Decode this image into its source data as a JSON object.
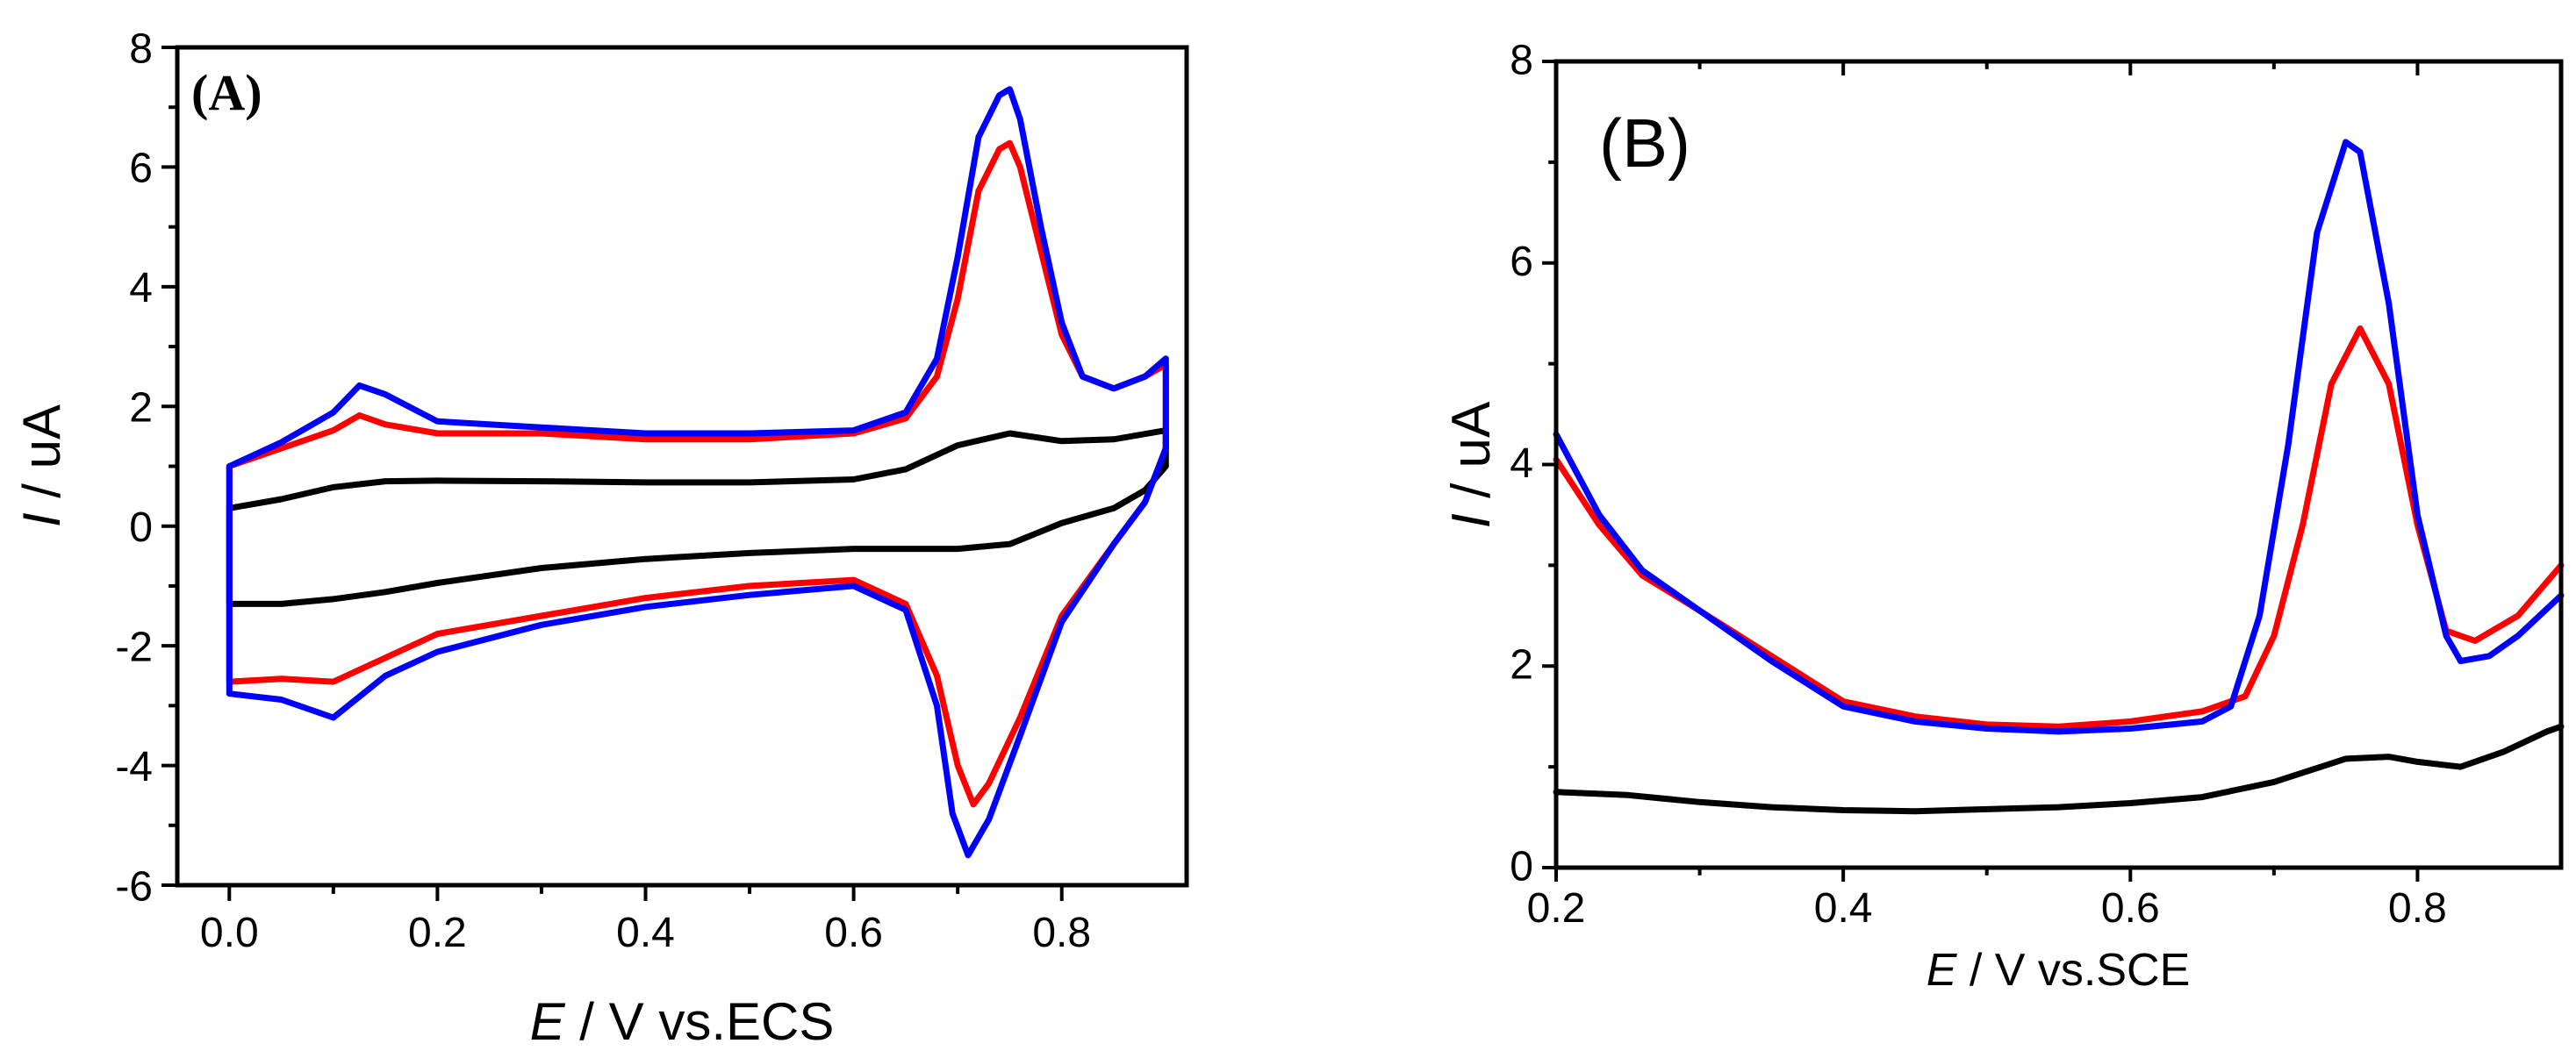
{
  "chart_data": [
    {
      "type": "line",
      "panel_label": "(A)",
      "xlabel_italic": "E",
      "xlabel_rest": " / V vs.ECS",
      "ylabel_italic": "I",
      "ylabel_rest": " / uA",
      "xlim": [
        -0.05,
        0.92
      ],
      "ylim": [
        -6,
        8
      ],
      "xticks": [
        0.0,
        0.2,
        0.4,
        0.6,
        0.8
      ],
      "xtick_labels": [
        "0.0",
        "0.2",
        "0.4",
        "0.6",
        "0.8"
      ],
      "yticks": [
        -6,
        -4,
        -2,
        0,
        2,
        4,
        6,
        8
      ],
      "ytick_labels": [
        "-6",
        "-4",
        "-2",
        "0",
        "2",
        "4",
        "6",
        "8"
      ],
      "series": [
        {
          "name": "black",
          "color": "#000000",
          "points": [
            [
              0.0,
              -0.3
            ],
            [
              0.0,
              0.3
            ],
            [
              0.05,
              0.45
            ],
            [
              0.1,
              0.65
            ],
            [
              0.15,
              0.75
            ],
            [
              0.2,
              0.76
            ],
            [
              0.3,
              0.75
            ],
            [
              0.4,
              0.73
            ],
            [
              0.5,
              0.73
            ],
            [
              0.6,
              0.78
            ],
            [
              0.65,
              0.95
            ],
            [
              0.7,
              1.35
            ],
            [
              0.75,
              1.55
            ],
            [
              0.8,
              1.42
            ],
            [
              0.85,
              1.45
            ],
            [
              0.9,
              1.6
            ],
            [
              0.9,
              1.0
            ],
            [
              0.88,
              0.6
            ],
            [
              0.85,
              0.3
            ],
            [
              0.8,
              0.05
            ],
            [
              0.75,
              -0.3
            ],
            [
              0.7,
              -0.38
            ],
            [
              0.6,
              -0.38
            ],
            [
              0.5,
              -0.45
            ],
            [
              0.4,
              -0.55
            ],
            [
              0.3,
              -0.7
            ],
            [
              0.2,
              -0.95
            ],
            [
              0.15,
              -1.1
            ],
            [
              0.1,
              -1.22
            ],
            [
              0.05,
              -1.3
            ],
            [
              0.0,
              -1.3
            ],
            [
              0.0,
              -0.3
            ]
          ]
        },
        {
          "name": "red",
          "color": "#ff0000",
          "points": [
            [
              0.0,
              -0.3
            ],
            [
              0.0,
              1.0
            ],
            [
              0.05,
              1.3
            ],
            [
              0.1,
              1.6
            ],
            [
              0.125,
              1.85
            ],
            [
              0.15,
              1.7
            ],
            [
              0.2,
              1.55
            ],
            [
              0.3,
              1.55
            ],
            [
              0.4,
              1.45
            ],
            [
              0.5,
              1.45
            ],
            [
              0.6,
              1.55
            ],
            [
              0.65,
              1.8
            ],
            [
              0.68,
              2.5
            ],
            [
              0.7,
              3.8
            ],
            [
              0.72,
              5.6
            ],
            [
              0.74,
              6.3
            ],
            [
              0.75,
              6.4
            ],
            [
              0.76,
              6.0
            ],
            [
              0.78,
              4.6
            ],
            [
              0.8,
              3.2
            ],
            [
              0.82,
              2.5
            ],
            [
              0.85,
              2.3
            ],
            [
              0.88,
              2.5
            ],
            [
              0.9,
              2.7
            ],
            [
              0.9,
              1.3
            ],
            [
              0.88,
              0.4
            ],
            [
              0.85,
              -0.3
            ],
            [
              0.8,
              -1.5
            ],
            [
              0.76,
              -3.2
            ],
            [
              0.73,
              -4.3
            ],
            [
              0.715,
              -4.65
            ],
            [
              0.7,
              -4.0
            ],
            [
              0.68,
              -2.5
            ],
            [
              0.65,
              -1.3
            ],
            [
              0.6,
              -0.9
            ],
            [
              0.5,
              -1.0
            ],
            [
              0.4,
              -1.2
            ],
            [
              0.3,
              -1.5
            ],
            [
              0.2,
              -1.8
            ],
            [
              0.15,
              -2.2
            ],
            [
              0.1,
              -2.6
            ],
            [
              0.05,
              -2.55
            ],
            [
              0.0,
              -2.6
            ],
            [
              0.0,
              -0.3
            ]
          ]
        },
        {
          "name": "blue",
          "color": "#0000ff",
          "points": [
            [
              0.0,
              -2.8
            ],
            [
              0.0,
              1.0
            ],
            [
              0.05,
              1.4
            ],
            [
              0.1,
              1.9
            ],
            [
              0.125,
              2.35
            ],
            [
              0.15,
              2.2
            ],
            [
              0.2,
              1.75
            ],
            [
              0.3,
              1.65
            ],
            [
              0.4,
              1.55
            ],
            [
              0.5,
              1.55
            ],
            [
              0.6,
              1.6
            ],
            [
              0.65,
              1.9
            ],
            [
              0.68,
              2.8
            ],
            [
              0.7,
              4.5
            ],
            [
              0.72,
              6.5
            ],
            [
              0.74,
              7.2
            ],
            [
              0.75,
              7.3
            ],
            [
              0.76,
              6.8
            ],
            [
              0.78,
              5.0
            ],
            [
              0.8,
              3.4
            ],
            [
              0.82,
              2.5
            ],
            [
              0.85,
              2.3
            ],
            [
              0.88,
              2.5
            ],
            [
              0.9,
              2.8
            ],
            [
              0.9,
              1.3
            ],
            [
              0.88,
              0.4
            ],
            [
              0.85,
              -0.3
            ],
            [
              0.8,
              -1.6
            ],
            [
              0.76,
              -3.5
            ],
            [
              0.73,
              -4.9
            ],
            [
              0.71,
              -5.5
            ],
            [
              0.695,
              -4.8
            ],
            [
              0.68,
              -3.0
            ],
            [
              0.65,
              -1.4
            ],
            [
              0.6,
              -1.0
            ],
            [
              0.5,
              -1.15
            ],
            [
              0.4,
              -1.35
            ],
            [
              0.3,
              -1.65
            ],
            [
              0.2,
              -2.1
            ],
            [
              0.15,
              -2.5
            ],
            [
              0.1,
              -3.2
            ],
            [
              0.05,
              -2.9
            ],
            [
              0.0,
              -2.8
            ]
          ]
        }
      ]
    },
    {
      "type": "line",
      "panel_label": "(B)",
      "xlabel_italic": "E",
      "xlabel_rest": " / V vs.SCE",
      "ylabel_italic": "I",
      "ylabel_rest": " / uA",
      "xlim": [
        0.2,
        0.9
      ],
      "ylim": [
        0,
        8
      ],
      "xticks": [
        0.2,
        0.4,
        0.6,
        0.8
      ],
      "xtick_labels": [
        "0.2",
        "0.4",
        "0.6",
        "0.8"
      ],
      "yticks": [
        0,
        2,
        4,
        6,
        8
      ],
      "ytick_labels": [
        "0",
        "2",
        "4",
        "6",
        "8"
      ],
      "series": [
        {
          "name": "black",
          "color": "#000000",
          "points": [
            [
              0.2,
              0.75
            ],
            [
              0.25,
              0.72
            ],
            [
              0.3,
              0.65
            ],
            [
              0.35,
              0.6
            ],
            [
              0.4,
              0.57
            ],
            [
              0.45,
              0.56
            ],
            [
              0.5,
              0.58
            ],
            [
              0.55,
              0.6
            ],
            [
              0.6,
              0.64
            ],
            [
              0.65,
              0.7
            ],
            [
              0.7,
              0.85
            ],
            [
              0.75,
              1.08
            ],
            [
              0.78,
              1.1
            ],
            [
              0.8,
              1.05
            ],
            [
              0.83,
              1.0
            ],
            [
              0.86,
              1.15
            ],
            [
              0.89,
              1.35
            ],
            [
              0.9,
              1.4
            ]
          ]
        },
        {
          "name": "red",
          "color": "#ff0000",
          "points": [
            [
              0.2,
              4.05
            ],
            [
              0.23,
              3.4
            ],
            [
              0.26,
              2.9
            ],
            [
              0.3,
              2.55
            ],
            [
              0.35,
              2.1
            ],
            [
              0.4,
              1.65
            ],
            [
              0.45,
              1.5
            ],
            [
              0.5,
              1.42
            ],
            [
              0.55,
              1.4
            ],
            [
              0.6,
              1.45
            ],
            [
              0.65,
              1.55
            ],
            [
              0.68,
              1.7
            ],
            [
              0.7,
              2.3
            ],
            [
              0.72,
              3.4
            ],
            [
              0.74,
              4.8
            ],
            [
              0.76,
              5.35
            ],
            [
              0.78,
              4.8
            ],
            [
              0.8,
              3.4
            ],
            [
              0.82,
              2.35
            ],
            [
              0.84,
              2.25
            ],
            [
              0.87,
              2.5
            ],
            [
              0.9,
              3.0
            ]
          ]
        },
        {
          "name": "blue",
          "color": "#0000ff",
          "points": [
            [
              0.2,
              4.3
            ],
            [
              0.23,
              3.5
            ],
            [
              0.26,
              2.95
            ],
            [
              0.3,
              2.55
            ],
            [
              0.35,
              2.05
            ],
            [
              0.4,
              1.6
            ],
            [
              0.45,
              1.45
            ],
            [
              0.5,
              1.38
            ],
            [
              0.55,
              1.35
            ],
            [
              0.6,
              1.38
            ],
            [
              0.65,
              1.45
            ],
            [
              0.67,
              1.6
            ],
            [
              0.69,
              2.5
            ],
            [
              0.71,
              4.2
            ],
            [
              0.73,
              6.3
            ],
            [
              0.75,
              7.2
            ],
            [
              0.76,
              7.1
            ],
            [
              0.78,
              5.6
            ],
            [
              0.8,
              3.5
            ],
            [
              0.82,
              2.3
            ],
            [
              0.83,
              2.05
            ],
            [
              0.85,
              2.1
            ],
            [
              0.87,
              2.3
            ],
            [
              0.9,
              2.7
            ]
          ]
        }
      ]
    }
  ]
}
